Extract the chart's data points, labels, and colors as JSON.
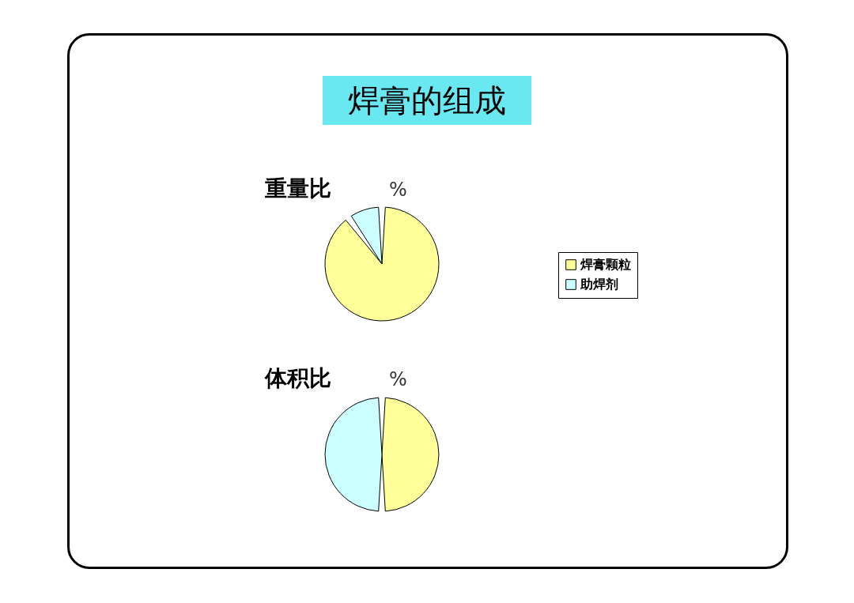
{
  "chart_data": [
    {
      "type": "other",
      "title": "焊膏的组成"
    },
    {
      "type": "pie",
      "title": "重量比",
      "subtitle": "%",
      "categories": [
        "焊膏颗粒",
        "助焊剂"
      ],
      "values": [
        90,
        10
      ],
      "colors": [
        "#ffff99",
        "#ccffff"
      ],
      "legend": "right"
    },
    {
      "type": "pie",
      "title": "体积比",
      "subtitle": "%",
      "categories": [
        null,
        null
      ],
      "values": [
        50,
        50
      ],
      "colors": [
        "#ffff99",
        "#ccffff"
      ]
    }
  ]
}
